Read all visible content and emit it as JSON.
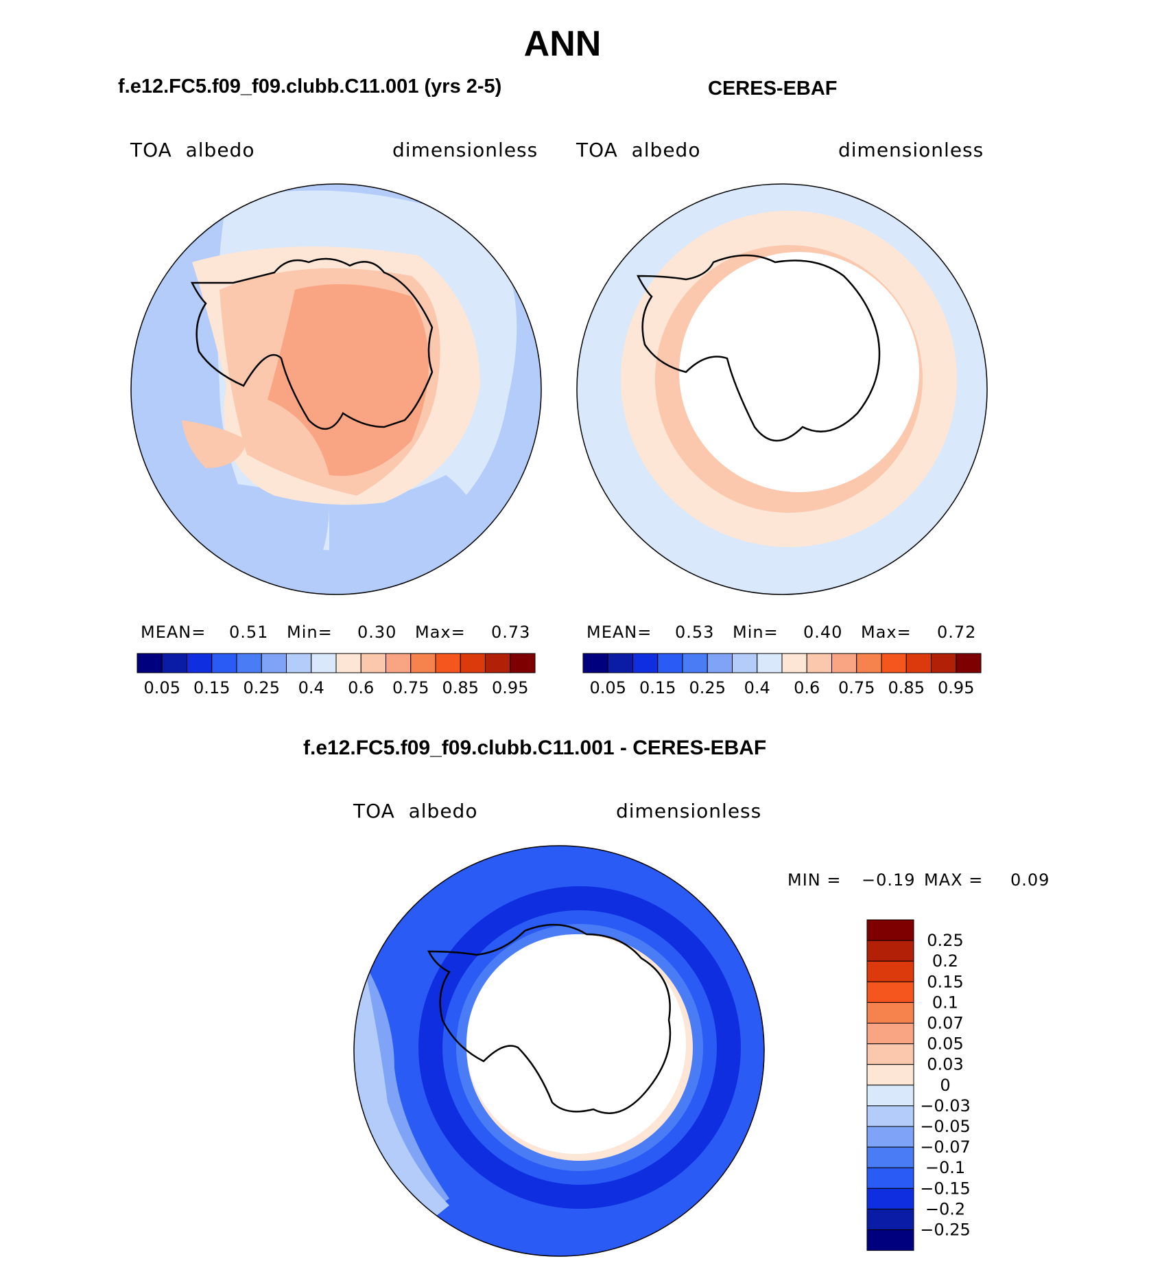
{
  "main_title": "ANN",
  "panels": [
    {
      "case_title": "f.e12.FC5.f09_f09.clubb.C11.001 (yrs 2-5)",
      "variable": "TOA  albedo",
      "units": "dimensionless",
      "stats": {
        "mean_label": "MEAN=",
        "mean": "0.51",
        "min_label": "Min=",
        "min": "0.30",
        "max_label": "Max=",
        "max": "0.73"
      },
      "colorbar_ticks": [
        "0.05",
        "0.15",
        "0.25",
        "0.4",
        "0.6",
        "0.75",
        "0.85",
        "0.95"
      ]
    },
    {
      "case_title": "CERES-EBAF",
      "variable": "TOA  albedo",
      "units": "dimensionless",
      "stats": {
        "mean_label": "MEAN=",
        "mean": "0.53",
        "min_label": "Min=",
        "min": "0.40",
        "max_label": "Max=",
        "max": "0.72"
      },
      "colorbar_ticks": [
        "0.05",
        "0.15",
        "0.25",
        "0.4",
        "0.6",
        "0.75",
        "0.85",
        "0.95"
      ]
    }
  ],
  "diff_panel": {
    "title": "f.e12.FC5.f09_f09.clubb.C11.001 - CERES-EBAF",
    "variable": "TOA  albedo",
    "units": "dimensionless",
    "min_label": "MIN =",
    "min": "−0.19",
    "max_label": "MAX =",
    "max": "0.09",
    "colorbar_labels": [
      "0.25",
      "0.2",
      "0.15",
      "0.1",
      "0.07",
      "0.05",
      "0.03",
      "0",
      "−0.03",
      "−0.05",
      "−0.07",
      "−0.1",
      "−0.15",
      "−0.2",
      "−0.25"
    ]
  },
  "colors": {
    "abs_scale": [
      "#00007f",
      "#0a1ca6",
      "#0f2ee0",
      "#2a5bf5",
      "#4a7df5",
      "#7ea3f7",
      "#b3ccf9",
      "#d9e8fb",
      "#fde6d6",
      "#fbc7ad",
      "#f9a583",
      "#f6834d",
      "#f4561e",
      "#dc3a0c",
      "#b22007",
      "#7f0000"
    ],
    "diff_scale": [
      "#7f0000",
      "#b22007",
      "#dc3a0c",
      "#f4561e",
      "#f6834d",
      "#f9a583",
      "#fbc7ad",
      "#fde6d6",
      "#d9e8fb",
      "#b3ccf9",
      "#7ea3f7",
      "#4a7df5",
      "#2a5bf5",
      "#0f2ee0",
      "#0a1ca6",
      "#00007f"
    ]
  }
}
